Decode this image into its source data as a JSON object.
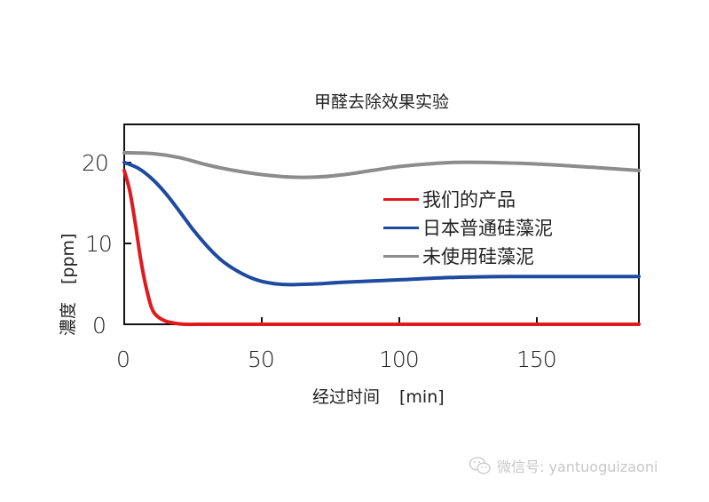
{
  "chart_data": {
    "type": "line",
    "title": "甲醛去除效果实验",
    "xlabel": "经过时间",
    "xlabel_unit": "[min]",
    "ylabel": "濃度",
    "ylabel_unit": "[ppm]",
    "xlim": [
      0,
      187
    ],
    "ylim": [
      0,
      24.7
    ],
    "xticks": [
      0,
      50,
      100,
      150
    ],
    "yticks": [
      0,
      10,
      20
    ],
    "grid": false,
    "legend_position": "upper right (inside)",
    "series": [
      {
        "name": "我们的产品",
        "color": "#e0191f",
        "x": [
          0,
          2,
          4,
          6,
          8,
          10,
          12,
          15,
          18,
          22,
          30,
          50,
          100,
          150,
          187
        ],
        "y": [
          19.0,
          16.5,
          12.5,
          8.0,
          4.5,
          2.0,
          1.0,
          0.4,
          0.15,
          0.0,
          0.0,
          0.0,
          0.0,
          0.0,
          0.0
        ]
      },
      {
        "name": "日本普通硅藻泥",
        "color": "#1e4aa0",
        "x": [
          0,
          5,
          10,
          15,
          20,
          25,
          30,
          35,
          40,
          45,
          50,
          55,
          60,
          70,
          80,
          100,
          120,
          140,
          160,
          187
        ],
        "y": [
          20.0,
          19.3,
          18.0,
          16.2,
          14.0,
          11.7,
          9.7,
          8.0,
          6.8,
          5.9,
          5.3,
          5.0,
          4.9,
          5.0,
          5.2,
          5.5,
          5.8,
          5.9,
          5.9,
          5.9
        ]
      },
      {
        "name": "未使用硅藻泥",
        "color": "#8c8c8c",
        "x": [
          0,
          10,
          20,
          30,
          40,
          50,
          60,
          70,
          80,
          90,
          100,
          110,
          120,
          130,
          150,
          170,
          187
        ],
        "y": [
          21.2,
          21.1,
          20.6,
          19.7,
          19.0,
          18.5,
          18.2,
          18.2,
          18.5,
          19.0,
          19.5,
          19.8,
          20.0,
          20.0,
          19.8,
          19.4,
          19.0
        ]
      }
    ]
  },
  "labels": {
    "title": "甲醛去除效果实验",
    "xtick_0": "0",
    "xtick_50": "50",
    "xtick_100": "100",
    "xtick_150": "150",
    "ytick_0": "0",
    "ytick_10": "10",
    "ytick_20": "20",
    "xlabel": "经过时间",
    "xlabel_unit": "[min]",
    "ylabel": "濃度",
    "ylabel_unit": "[ppm]"
  },
  "legend": [
    {
      "label": "我们的产品",
      "color": "#e0191f"
    },
    {
      "label": "日本普通硅藻泥",
      "color": "#1e4aa0"
    },
    {
      "label": "未使用硅藻泥",
      "color": "#8c8c8c"
    }
  ],
  "watermark": {
    "icon": "wechat-icon",
    "text": "微信号: yantuoguizaoni"
  }
}
